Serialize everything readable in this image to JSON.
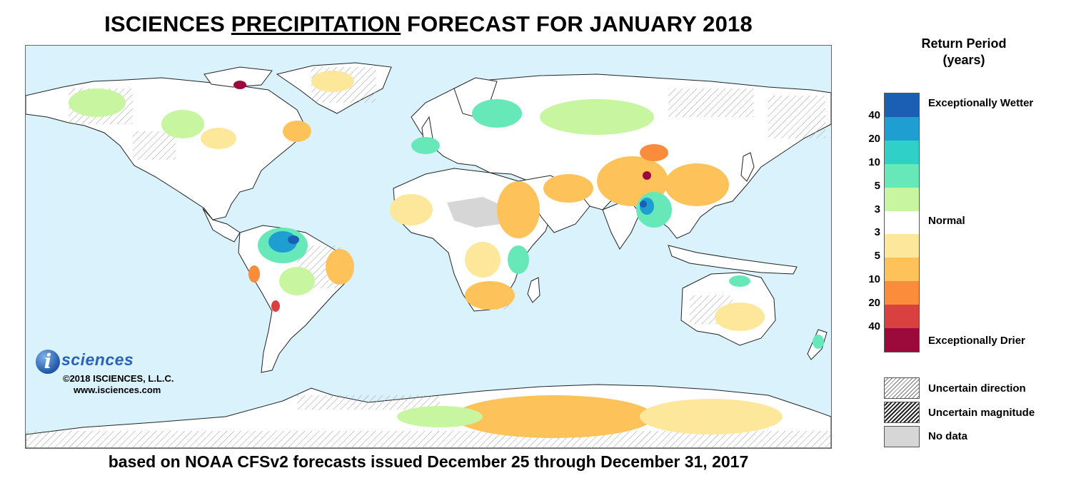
{
  "title": {
    "prefix": "ISCIENCES ",
    "emphasis": "PRECIPITATION",
    "suffix": " FORECAST FOR JANUARY 2018"
  },
  "subtitle": "based on NOAA CFSv2 forecasts issued December 25 through December 31, 2017",
  "logo": {
    "letter": "i",
    "word": "sciences",
    "copyright": "©2018 ISCIENCES, L.L.C.",
    "website": "www.isciences.com"
  },
  "legend": {
    "title_line1": "Return Period",
    "title_line2": "(years)",
    "colors": [
      "#1a5fb4",
      "#1f9ed2",
      "#2fd0c8",
      "#66e8b8",
      "#c8f5a0",
      "#ffffff",
      "#fde79a",
      "#fdc35a",
      "#fb8c3c",
      "#d94040",
      "#9c0a3c"
    ],
    "ticks": [
      "40",
      "20",
      "10",
      "5",
      "3",
      "3",
      "5",
      "10",
      "20",
      "40"
    ],
    "labels": {
      "wetter": "Exceptionally Wetter",
      "normal": "Normal",
      "drier": "Exceptionally Drier"
    },
    "overlays": {
      "uncertain_direction": "Uncertain direction",
      "uncertain_magnitude": "Uncertain magnitude",
      "no_data": "No data"
    }
  },
  "map": {
    "ocean_color": "#d9f2fc",
    "land_color": "#ffffff",
    "border_color": "#222222",
    "nodata_color": "#d6d6d6"
  }
}
